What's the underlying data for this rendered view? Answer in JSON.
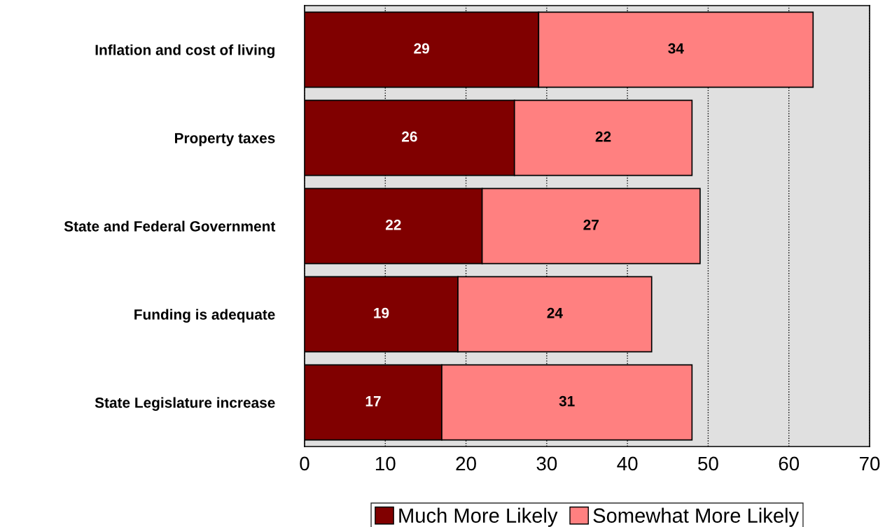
{
  "chart_data": {
    "type": "bar",
    "orientation": "horizontal",
    "stacked": true,
    "categories": [
      "Inflation and cost of living",
      "Property taxes",
      "State and Federal Government",
      "Funding is adequate",
      "State Legislature increase"
    ],
    "series": [
      {
        "name": "Much More Likely",
        "color": "#800000",
        "values": [
          29,
          26,
          22,
          19,
          17
        ]
      },
      {
        "name": "Somewhat More Likely",
        "color": "#ff8080",
        "values": [
          34,
          22,
          27,
          24,
          31
        ]
      }
    ],
    "xlim": [
      0,
      70
    ],
    "xticks": [
      0,
      10,
      20,
      30,
      40,
      50,
      60,
      70
    ],
    "grid": "x",
    "legend": "bottom",
    "data_labels": true
  }
}
